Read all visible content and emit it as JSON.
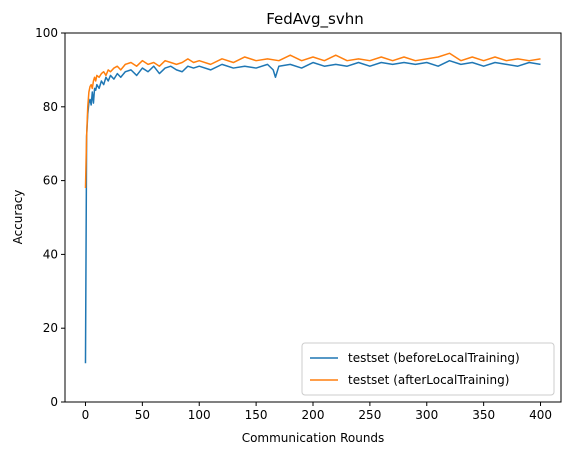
{
  "chart_data": {
    "type": "line",
    "title": "FedAvg_svhn",
    "xlabel": "Communication Rounds",
    "ylabel": "Accuracy",
    "xlim": [
      -18,
      418
    ],
    "ylim": [
      0,
      100
    ],
    "xticks": [
      0,
      50,
      100,
      150,
      200,
      250,
      300,
      350,
      400
    ],
    "yticks": [
      0,
      20,
      40,
      60,
      80,
      100
    ],
    "grid": false,
    "legend_position": "lower-right",
    "series": [
      {
        "name": "testset (beforeLocalTraining)",
        "color": "#1f77b4",
        "x": [
          0,
          1,
          2,
          3,
          4,
          5,
          6,
          7,
          8,
          9,
          10,
          12,
          14,
          16,
          18,
          20,
          22,
          25,
          28,
          31,
          35,
          40,
          45,
          50,
          55,
          60,
          65,
          70,
          75,
          80,
          85,
          90,
          95,
          100,
          110,
          120,
          130,
          140,
          150,
          160,
          165,
          167,
          170,
          180,
          190,
          200,
          210,
          220,
          230,
          240,
          250,
          260,
          270,
          280,
          290,
          300,
          310,
          320,
          330,
          340,
          350,
          360,
          370,
          380,
          390,
          400
        ],
        "y": [
          10.5,
          72,
          78,
          81,
          82,
          80.5,
          84,
          81,
          85,
          84.5,
          86,
          85,
          87,
          86,
          88,
          87,
          88.5,
          87.5,
          89,
          88,
          89.5,
          90,
          88.5,
          90.5,
          89.5,
          91,
          89,
          90.5,
          91,
          90,
          89.5,
          91,
          90.5,
          91,
          90,
          91.5,
          90.5,
          91,
          90.5,
          91.5,
          90,
          88,
          91,
          91.5,
          90.5,
          92,
          91,
          91.5,
          91,
          92,
          91,
          92,
          91.5,
          92,
          91.5,
          92,
          91,
          92.5,
          91.5,
          92,
          91,
          92,
          91.5,
          91,
          92,
          91.5
        ]
      },
      {
        "name": "testset (afterLocalTraining)",
        "color": "#ff7f0e",
        "x": [
          0,
          1,
          2,
          3,
          4,
          5,
          6,
          7,
          8,
          9,
          10,
          12,
          14,
          16,
          18,
          20,
          22,
          25,
          28,
          31,
          35,
          40,
          45,
          50,
          55,
          60,
          65,
          70,
          75,
          80,
          85,
          90,
          95,
          100,
          110,
          120,
          130,
          140,
          150,
          160,
          170,
          180,
          190,
          200,
          210,
          220,
          230,
          240,
          250,
          260,
          270,
          280,
          290,
          300,
          310,
          320,
          330,
          340,
          350,
          360,
          370,
          380,
          390,
          400
        ],
        "y": [
          58,
          72,
          80,
          84,
          85.5,
          86,
          85,
          87,
          88,
          87,
          88.5,
          88,
          89,
          89.5,
          88.5,
          90,
          89.5,
          90.5,
          91,
          90,
          91.5,
          92,
          91,
          92.5,
          91.5,
          92,
          91,
          92.5,
          92,
          91.5,
          92,
          93,
          92,
          92.5,
          91.5,
          93,
          92,
          93.5,
          92.5,
          93,
          92.5,
          94,
          92.5,
          93.5,
          92.5,
          94,
          92.5,
          93,
          92.5,
          93.5,
          92.5,
          93.5,
          92.5,
          93,
          93.5,
          94.5,
          92.5,
          93.5,
          92.5,
          93.5,
          92.5,
          93,
          92.5,
          93
        ]
      }
    ]
  }
}
